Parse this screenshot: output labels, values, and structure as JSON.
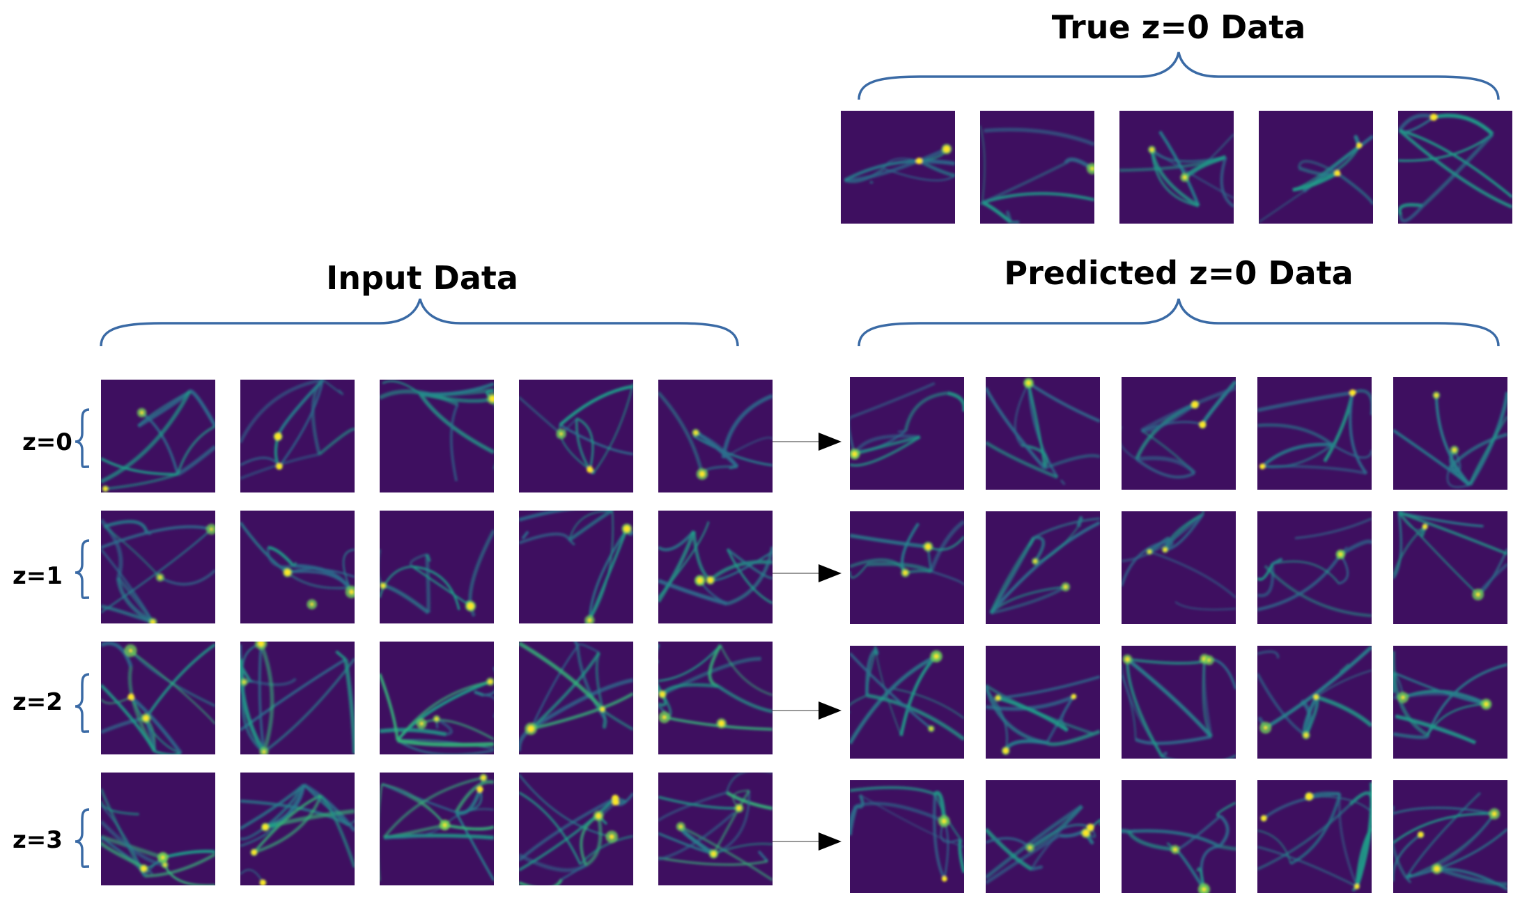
{
  "titles": {
    "true_data": "True z=0 Data",
    "input_data": "Input Data",
    "predicted_data": "Predicted z=0 Data"
  },
  "row_labels": [
    "z=0",
    "z=1",
    "z=2",
    "z=3"
  ],
  "colors": {
    "brace": "#3a6aa5",
    "arrow": "#000000",
    "colormap": [
      "#440154",
      "#3b528b",
      "#21918c",
      "#5ec962",
      "#fde725"
    ]
  }
}
